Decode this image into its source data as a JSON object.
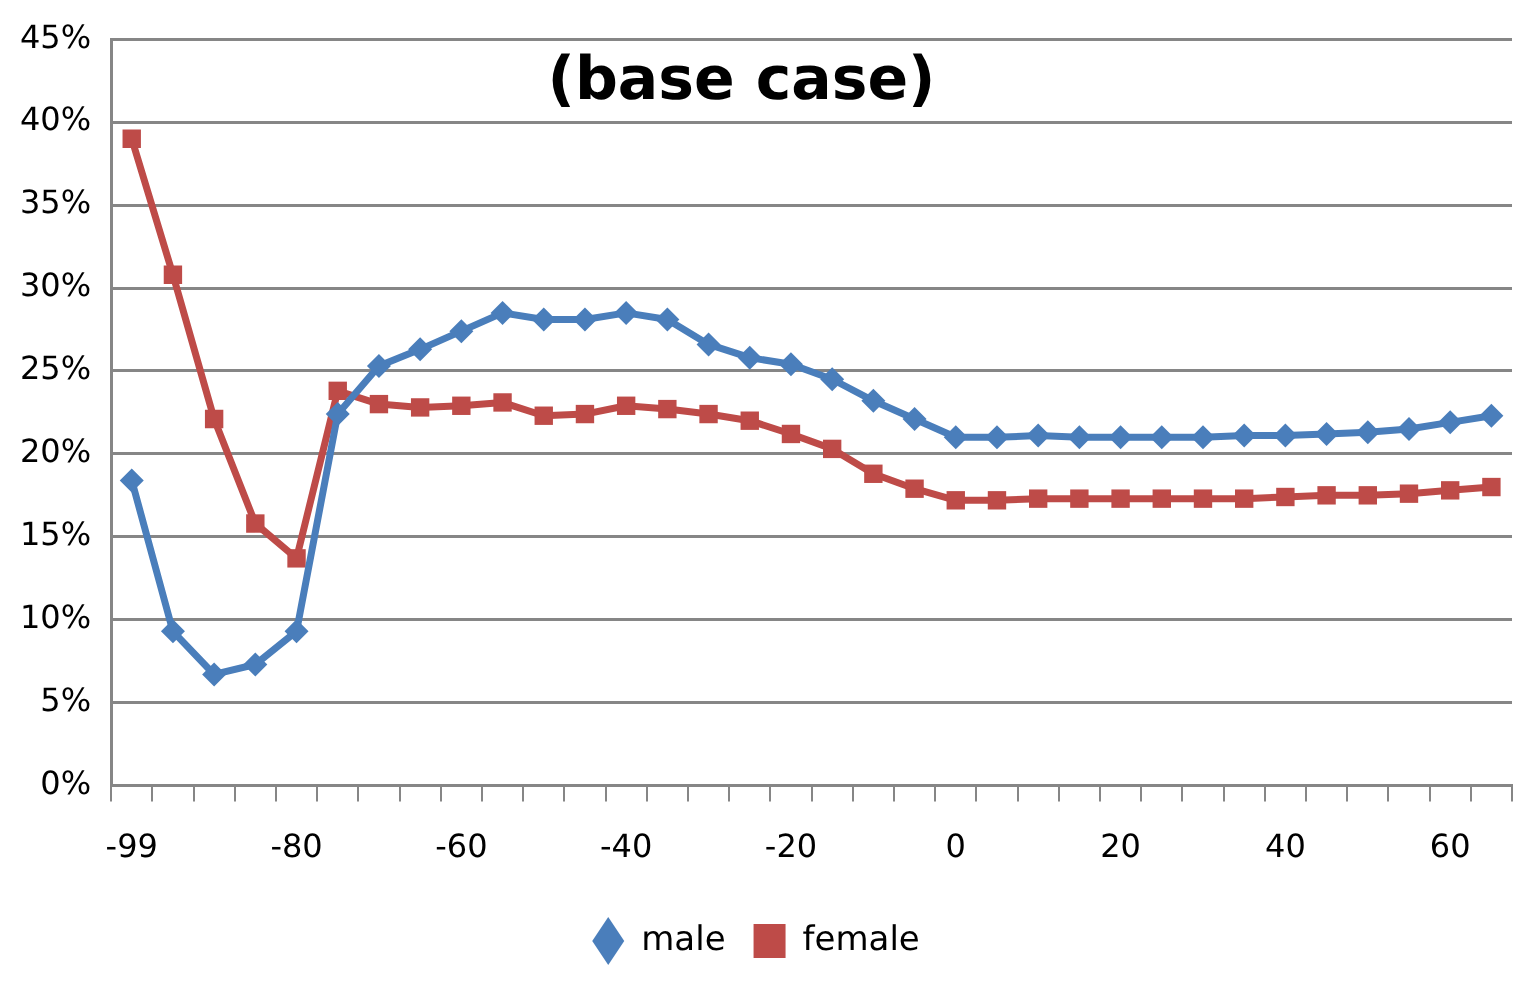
{
  "chart_data": {
    "type": "line",
    "title": "(base case)",
    "categories": [
      "-99",
      null,
      null,
      null,
      "-80",
      null,
      null,
      null,
      "-60",
      null,
      null,
      null,
      "-40",
      null,
      null,
      null,
      "-20",
      null,
      null,
      null,
      "0",
      null,
      null,
      null,
      "20",
      null,
      null,
      null,
      "40",
      null,
      null,
      null,
      "60",
      null
    ],
    "series": [
      {
        "name": "male",
        "color": "#4a7ebb",
        "marker": "diamond",
        "values": [
          18.4,
          9.3,
          6.7,
          7.3,
          9.3,
          22.4,
          25.3,
          26.3,
          27.4,
          28.5,
          28.1,
          28.1,
          28.5,
          28.1,
          26.6,
          25.8,
          25.4,
          24.5,
          23.2,
          22.1,
          21.0,
          21.0,
          21.1,
          21.0,
          21.0,
          21.0,
          21.0,
          21.1,
          21.1,
          21.2,
          21.3,
          21.5,
          21.9,
          22.3
        ]
      },
      {
        "name": "female",
        "color": "#be4b48",
        "marker": "square",
        "values": [
          39.0,
          30.8,
          22.1,
          15.8,
          13.7,
          23.8,
          23.0,
          22.8,
          22.9,
          23.1,
          22.3,
          22.4,
          22.9,
          22.7,
          22.4,
          22.0,
          21.2,
          20.3,
          18.8,
          17.9,
          17.2,
          17.2,
          17.3,
          17.3,
          17.3,
          17.3,
          17.3,
          17.3,
          17.4,
          17.5,
          17.5,
          17.6,
          17.8,
          18.0
        ]
      }
    ],
    "ylim": [
      0,
      45
    ],
    "yticks": [
      {
        "value": 0,
        "label": "0%"
      },
      {
        "value": 5,
        "label": "5%"
      },
      {
        "value": 10,
        "label": "10%"
      },
      {
        "value": 15,
        "label": "15%"
      },
      {
        "value": 20,
        "label": "20%"
      },
      {
        "value": 25,
        "label": "25%"
      },
      {
        "value": 30,
        "label": "30%"
      },
      {
        "value": 35,
        "label": "35%"
      },
      {
        "value": 40,
        "label": "40%"
      },
      {
        "value": 45,
        "label": "45%"
      }
    ],
    "grid": "y",
    "legend": "bottom",
    "line_style": "solid"
  }
}
